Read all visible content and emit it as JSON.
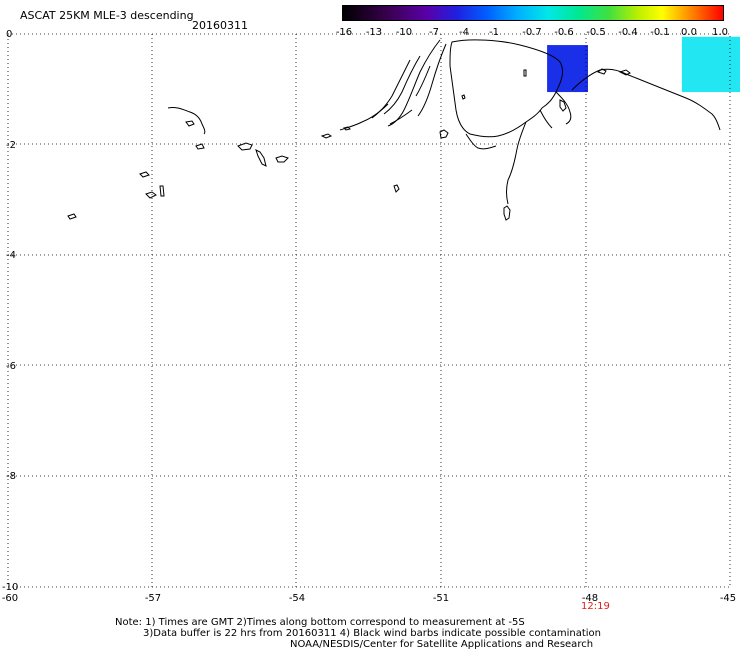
{
  "title": "ASCAT 25KM MLE-3 descending",
  "date": "20160311",
  "colorbar": {
    "labels": [
      "-16",
      "-13",
      "-10",
      "-7",
      "-4",
      "-1",
      "-0.7",
      "-0.6",
      "-0.5",
      "-0.4",
      "-0.1",
      "0.0",
      "1.0"
    ]
  },
  "axes": {
    "y_ticks": [
      "0",
      "-2",
      "-4",
      "-6",
      "-8",
      "-10"
    ],
    "x_ticks": [
      "-60",
      "-57",
      "-54",
      "-51",
      "-48",
      "-45"
    ]
  },
  "time_label": "12:19",
  "notes": {
    "line1": "Note: 1) Times are GMT 2)Times along bottom correspond to measurement at -5S",
    "line2": "3)Data buffer is 22 hrs from 20160311 4) Black wind barbs indicate possible contamination",
    "line3": "NOAA/NESDIS/Center for Satellite Applications and Research"
  },
  "data_patches": [
    {
      "name": "blue",
      "color": "#1a2fe8",
      "lon": [
        -48.8,
        -47.95
      ],
      "lat": [
        -1.05,
        -0.2
      ]
    },
    {
      "name": "cyan",
      "color": "#22e6f2",
      "lon": [
        -46.0,
        -44.6
      ],
      "lat": [
        -1.05,
        -0.05
      ]
    }
  ],
  "colors": {
    "frame": "#000000",
    "grid": "#000000",
    "time": "#e0201c"
  }
}
